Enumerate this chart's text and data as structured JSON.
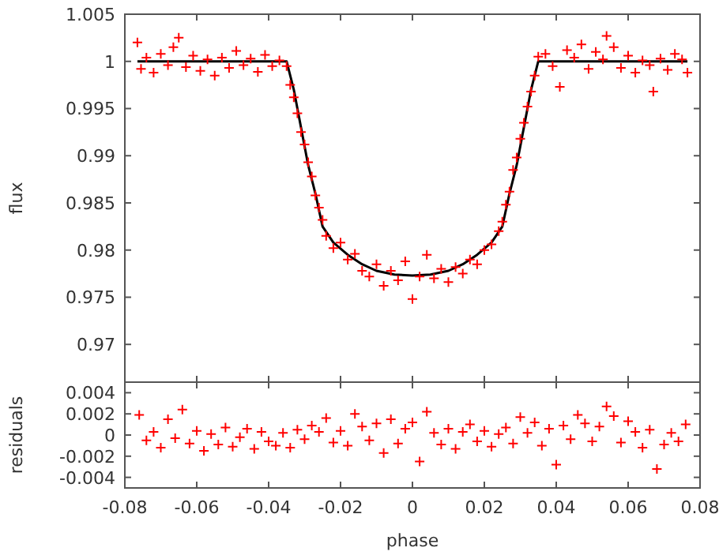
{
  "chart_data": [
    {
      "type": "scatter",
      "ylabel": "flux",
      "xlim": [
        -0.08,
        0.08
      ],
      "ylim": [
        0.966,
        1.005
      ],
      "xticks": [
        -0.08,
        -0.06,
        -0.04,
        -0.02,
        0,
        0.02,
        0.04,
        0.06,
        0.08
      ],
      "yticks": [
        0.97,
        0.975,
        0.98,
        0.985,
        0.99,
        0.995,
        1,
        1.005
      ],
      "tick_labels": "y",
      "series": [
        {
          "type": "scatter",
          "marker": "cross",
          "color": "#ff0000",
          "x": [
            -0.0765,
            -0.0755,
            -0.074,
            -0.072,
            -0.07,
            -0.068,
            -0.0665,
            -0.065,
            -0.063,
            -0.061,
            -0.059,
            -0.057,
            -0.055,
            -0.053,
            -0.051,
            -0.049,
            -0.047,
            -0.045,
            -0.043,
            -0.041,
            -0.039,
            -0.037,
            -0.035,
            -0.034,
            -0.033,
            -0.032,
            -0.031,
            -0.03,
            -0.029,
            -0.028,
            -0.027,
            -0.026,
            -0.025,
            -0.024,
            -0.022,
            -0.02,
            -0.018,
            -0.016,
            -0.014,
            -0.012,
            -0.01,
            -0.008,
            -0.006,
            -0.004,
            -0.002,
            0,
            0.002,
            0.004,
            0.006,
            0.008,
            0.01,
            0.012,
            0.014,
            0.016,
            0.018,
            0.02,
            0.022,
            0.024,
            0.025,
            0.026,
            0.027,
            0.028,
            0.029,
            0.03,
            0.031,
            0.032,
            0.033,
            0.034,
            0.035,
            0.037,
            0.039,
            0.041,
            0.043,
            0.045,
            0.047,
            0.049,
            0.051,
            0.053,
            0.054,
            0.056,
            0.058,
            0.06,
            0.062,
            0.064,
            0.066,
            0.067,
            0.069,
            0.071,
            0.073,
            0.075,
            0.0765
          ],
          "values": [
            1.002,
            0.9992,
            1.0004,
            0.9988,
            1.0008,
            0.9996,
            1.0015,
            1.0025,
            0.9994,
            1.0006,
            0.999,
            1.0002,
            0.9985,
            1.0004,
            0.9993,
            1.0011,
            0.9996,
            1.0003,
            0.9989,
            1.0007,
            0.9995,
            1.0001,
            0.9995,
            0.9975,
            0.9962,
            0.9945,
            0.9925,
            0.9912,
            0.9893,
            0.9878,
            0.9858,
            0.9845,
            0.9832,
            0.9815,
            0.9802,
            0.9808,
            0.979,
            0.9796,
            0.9778,
            0.9772,
            0.9785,
            0.9762,
            0.9778,
            0.9768,
            0.9788,
            0.9748,
            0.9772,
            0.9795,
            0.977,
            0.978,
            0.9766,
            0.9782,
            0.9775,
            0.979,
            0.9785,
            0.98,
            0.9806,
            0.982,
            0.983,
            0.9848,
            0.9862,
            0.9885,
            0.9898,
            0.9918,
            0.9935,
            0.9952,
            0.9968,
            0.9985,
            1.0005,
            1.0008,
            0.9995,
            0.9973,
            1.0012,
            1.0004,
            1.0018,
            0.9992,
            1.001,
            1.0002,
            1.0027,
            1.0015,
            0.9993,
            1.0006,
            0.9988,
            1.0001,
            0.9996,
            0.9968,
            1.0003,
            0.9991,
            1.0008,
            1.0002,
            0.9988
          ]
        },
        {
          "type": "line",
          "marker": "none",
          "color": "#000000",
          "x": [
            -0.0765,
            -0.035,
            -0.033,
            -0.031,
            -0.029,
            -0.027,
            -0.025,
            -0.022,
            -0.018,
            -0.014,
            -0.01,
            -0.005,
            0,
            0.005,
            0.01,
            0.014,
            0.018,
            0.022,
            0.025,
            0.027,
            0.029,
            0.031,
            0.033,
            0.035,
            0.0765
          ],
          "values": [
            1,
            1,
            0.997,
            0.993,
            0.989,
            0.986,
            0.9825,
            0.9808,
            0.9795,
            0.9785,
            0.9778,
            0.9774,
            0.9773,
            0.9774,
            0.9778,
            0.9785,
            0.9795,
            0.9808,
            0.9825,
            0.986,
            0.989,
            0.993,
            0.997,
            1,
            1
          ]
        }
      ]
    },
    {
      "type": "scatter",
      "xlabel": "phase",
      "ylabel": "residuals",
      "xlim": [
        -0.08,
        0.08
      ],
      "ylim": [
        -0.005,
        0.005
      ],
      "xticks": [
        -0.08,
        -0.06,
        -0.04,
        -0.02,
        0,
        0.02,
        0.04,
        0.06,
        0.08
      ],
      "yticks": [
        -0.004,
        -0.002,
        0,
        0.002,
        0.004
      ],
      "series": [
        {
          "type": "scatter",
          "marker": "cross",
          "color": "#ff0000",
          "x": [
            -0.076,
            -0.074,
            -0.072,
            -0.07,
            -0.068,
            -0.066,
            -0.064,
            -0.062,
            -0.06,
            -0.058,
            -0.056,
            -0.054,
            -0.052,
            -0.05,
            -0.048,
            -0.046,
            -0.044,
            -0.042,
            -0.04,
            -0.038,
            -0.036,
            -0.034,
            -0.032,
            -0.03,
            -0.028,
            -0.026,
            -0.024,
            -0.022,
            -0.02,
            -0.018,
            -0.016,
            -0.014,
            -0.012,
            -0.01,
            -0.008,
            -0.006,
            -0.004,
            -0.002,
            0,
            0.002,
            0.004,
            0.006,
            0.008,
            0.01,
            0.012,
            0.014,
            0.016,
            0.018,
            0.02,
            0.022,
            0.024,
            0.026,
            0.028,
            0.03,
            0.032,
            0.034,
            0.036,
            0.038,
            0.04,
            0.042,
            0.044,
            0.046,
            0.048,
            0.05,
            0.052,
            0.054,
            0.056,
            0.058,
            0.06,
            0.062,
            0.064,
            0.066,
            0.068,
            0.07,
            0.072,
            0.074,
            0.076
          ],
          "values": [
            0.0019,
            -0.0005,
            0.0003,
            -0.0012,
            0.0015,
            -0.0003,
            0.0024,
            -0.0008,
            0.0004,
            -0.0015,
            0.0001,
            -0.0009,
            0.0007,
            -0.0011,
            -0.0002,
            0.0006,
            -0.0013,
            0.0003,
            -0.0006,
            -0.001,
            0.0002,
            -0.0012,
            0.0005,
            -0.0004,
            0.0009,
            0.0003,
            0.0016,
            -0.0007,
            0.0004,
            -0.001,
            0.002,
            0.0008,
            -0.0005,
            0.0011,
            -0.0017,
            0.0015,
            -0.0008,
            0.0006,
            0.0012,
            -0.0025,
            0.0022,
            0.0002,
            -0.0009,
            0.0006,
            -0.0013,
            0.0003,
            0.001,
            -0.0006,
            0.0004,
            -0.0011,
            0.0001,
            0.0007,
            -0.0008,
            0.0017,
            0.0002,
            0.0012,
            -0.001,
            0.0006,
            -0.0028,
            0.0009,
            -0.0004,
            0.0019,
            0.0011,
            -0.0006,
            0.0008,
            0.0027,
            0.0018,
            -0.0007,
            0.0013,
            0.0003,
            -0.0012,
            0.0005,
            -0.0032,
            -0.0009,
            0.0002,
            -0.0006,
            0.001
          ]
        }
      ]
    }
  ]
}
